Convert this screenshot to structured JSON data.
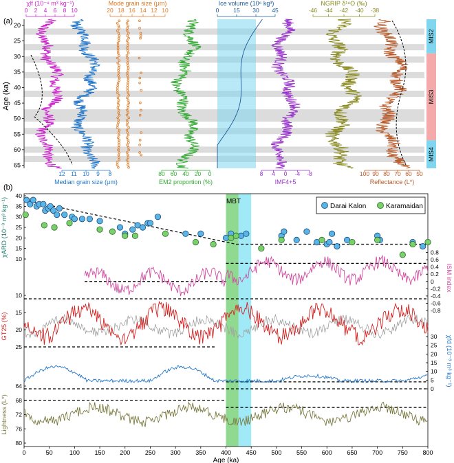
{
  "panel_labels": {
    "a": "(a)",
    "b": "(b)"
  },
  "colors": {
    "magenta": "#cc22cc",
    "blue": "#2277cc",
    "orange": "#e07820",
    "green": "#33aa33",
    "navy": "#1a5a9a",
    "purple": "#9933cc",
    "olive": "#8a8a20",
    "rust": "#b85a2a",
    "pink": "#d04aa0",
    "red": "#d42020",
    "khaki": "#7a7a40",
    "grey_band": "#dcdcdc",
    "mis2_band": "#7fd6ee",
    "mis3_band": "#f4aaaa",
    "mbt_green": "#7cd27c",
    "mbt_cyan": "#8ee6f4",
    "darai_marker": "#5ab4e6",
    "karamaidan_marker": "#7ad06a"
  },
  "chart_data": [
    {
      "type": "line",
      "panel": "(a)",
      "y_axis": {
        "label": "Age (ka)",
        "ticks": [
          "20",
          "25",
          "30",
          "35",
          "40",
          "45",
          "50",
          "55",
          "60",
          "65"
        ],
        "ylim": [
          18,
          66
        ],
        "inverted": true
      },
      "mis_labels": [
        "MIS2",
        "MIS3",
        "MIS4"
      ],
      "mis_ranges": [
        [
          18,
          29
        ],
        [
          29,
          57
        ],
        [
          57,
          66
        ]
      ],
      "grey_bands": [
        [
          21,
          23
        ],
        [
          26,
          28
        ],
        [
          30,
          32
        ],
        [
          35,
          37
        ],
        [
          41,
          43
        ],
        [
          47,
          51
        ],
        [
          53,
          55
        ],
        [
          59,
          61
        ],
        [
          62,
          64
        ]
      ],
      "columns": [
        {
          "name": "χlf",
          "axis_title": "χlf (10⁻⁸ m³ kg⁻¹)",
          "axis_position": "top",
          "ticks": [
            "0",
            "2",
            "4",
            "6",
            "8",
            "10"
          ],
          "xlim": [
            0,
            11
          ]
        },
        {
          "name": "Median grain size",
          "axis_title": "Median grain size (μm)",
          "axis_position": "bottom",
          "ticks": [
            "12",
            "11",
            "10",
            "9",
            "8"
          ],
          "xlim": [
            12.5,
            7.5
          ]
        },
        {
          "name": "Mode grain size",
          "axis_title": "Mode grain size (μm)",
          "axis_position": "top",
          "ticks": [
            "20",
            "18",
            "16",
            "14",
            "12",
            "10"
          ],
          "xlim": [
            20,
            9
          ]
        },
        {
          "name": "EM2 proportion",
          "axis_title": "EM2 proportion (%)",
          "axis_position": "bottom",
          "ticks": [
            "80",
            "60",
            "40",
            "20",
            "0"
          ],
          "xlim": [
            90,
            0
          ]
        },
        {
          "name": "Ice volume",
          "axis_title": "Ice volume (10⁶ kg³)",
          "axis_position": "top",
          "ticks": [
            "0",
            "15",
            "30",
            "45"
          ],
          "xlim": [
            0,
            45
          ]
        },
        {
          "name": "IMF4+5",
          "axis_title": "IMF4+5",
          "axis_position": "bottom",
          "ticks": [
            "8",
            "4",
            "0",
            "-4",
            "-8"
          ],
          "xlim": [
            9,
            -9
          ]
        },
        {
          "name": "NGRIP δ¹⁸O",
          "axis_title": "NGRIP δ¹⁸O (‰)",
          "axis_position": "top",
          "ticks": [
            "-46",
            "-44",
            "-42",
            "-40",
            "-38"
          ],
          "xlim": [
            -47,
            -36
          ]
        },
        {
          "name": "Reflectance",
          "axis_title": "Reflectance (L*)",
          "axis_position": "bottom",
          "ticks": [
            "100",
            "90",
            "80",
            "70",
            "60",
            "50"
          ],
          "xlim": [
            100,
            48
          ]
        }
      ]
    },
    {
      "type": "line",
      "panel": "(b)",
      "xlabel": "Age (ka)",
      "x_ticks": [
        "0",
        "50",
        "100",
        "150",
        "200",
        "250",
        "300",
        "350",
        "400",
        "450",
        "500",
        "550",
        "600",
        "650",
        "700",
        "750",
        "800"
      ],
      "xlim": [
        0,
        800
      ],
      "mbt_label": "MBT",
      "mbt_range": [
        400,
        450
      ],
      "legend": {
        "placement": "top-right",
        "entries": [
          "Darai Kalon",
          "Karamaidan"
        ]
      },
      "subplots": [
        {
          "name": "χARD",
          "axis_title": "χARD (10⁻⁸ m³ kg⁻¹)",
          "ticks": [
            "40",
            "35",
            "30",
            "25",
            "20",
            "15",
            "10"
          ],
          "ylim": [
            10,
            40
          ],
          "trend_lines": [
            {
              "x": [
                0,
                420
              ],
              "y": [
                38,
                17
              ]
            },
            {
              "x": [
                420,
                800
              ],
              "y": [
                17,
                17
              ]
            }
          ],
          "darai_kalon": {
            "x": [
              5,
              12,
              18,
              25,
              30,
              38,
              42,
              48,
              52,
              58,
              65,
              70,
              80,
              95,
              100,
              115,
              130,
              150,
              190,
              200,
              215,
              225,
              235,
              245,
              250,
              265,
              320,
              350,
              400,
              410,
              430,
              440,
              510,
              515,
              540,
              560,
              580,
              600,
              605,
              610,
              620,
              640,
              700,
              705,
              770,
              790
            ],
            "y": [
              38,
              36,
              38,
              35,
              36,
              36,
              33,
              34,
              35,
              33,
              31,
              34,
              31,
              30,
              29,
              29,
              29,
              28,
              25,
              22,
              24,
              26,
              25,
              27,
              27,
              30,
              22,
              22,
              20,
              22,
              21,
              22,
              21,
              23,
              19,
              23,
              18,
              17,
              18,
              22,
              16,
              19,
              21,
              19,
              18,
              16
            ]
          },
          "karamaidan": {
            "x": [
              3,
              40,
              60,
              90,
              150,
              175,
              200,
              220,
              280,
              340,
              375,
              410,
              420,
              470,
              510,
              590,
              650,
              700,
              750,
              770,
              800
            ],
            "y": [
              31,
              26,
              25,
              27,
              24,
              23,
              21,
              21,
              22,
              18,
              17,
              20,
              21,
              15,
              19,
              19,
              18,
              19,
              12,
              17,
              18
            ]
          }
        },
        {
          "name": "ISM index",
          "axis_title": "ISM index",
          "ticks": [
            "0.8",
            "0.6",
            "0.4",
            "0.2",
            "0",
            "-0.2",
            "-0.4",
            "-0.6",
            "-0.8"
          ],
          "ylim": [
            -0.8,
            1.0
          ],
          "trend_lines": [
            {
              "x": [
                120,
                400
              ],
              "y": [
                0,
                0
              ]
            },
            {
              "x": [
                400,
                800
              ],
              "y": [
                0.5,
                0.5
              ]
            }
          ]
        },
        {
          "name": "GT25",
          "axis_title": "GT25 (%)",
          "ticks": [
            "10",
            "15",
            "20",
            "25"
          ],
          "ylim": [
            10,
            28
          ],
          "inverted": true,
          "trend_lines": [
            {
              "x": [
                0,
                800
              ],
              "y": [
                11,
                11
              ]
            },
            {
              "x": [
                0,
                380
              ],
              "y": [
                25,
                25
              ]
            }
          ]
        },
        {
          "name": "χfd",
          "axis_title": "χfd (10⁻⁸ m³ kg⁻¹)",
          "ticks": [
            "30",
            "25",
            "20",
            "15",
            "10",
            "5",
            "0"
          ],
          "ylim": [
            0,
            32
          ],
          "trend_lines": [
            {
              "x": [
                0,
                800
              ],
              "y": [
                0,
                0
              ]
            },
            {
              "x": [
                400,
                800
              ],
              "y": [
                4,
                4
              ]
            }
          ]
        },
        {
          "name": "Lightness",
          "axis_title": "Lightness (L*)",
          "ticks": [
            "64",
            "68",
            "72",
            "76",
            "80"
          ],
          "ylim": [
            64,
            80
          ],
          "inverted": true,
          "trend_lines": [
            {
              "x": [
                0,
                400
              ],
              "y": [
                68,
                68
              ]
            },
            {
              "x": [
                400,
                800
              ],
              "y": [
                70,
                70
              ]
            }
          ]
        }
      ]
    }
  ]
}
